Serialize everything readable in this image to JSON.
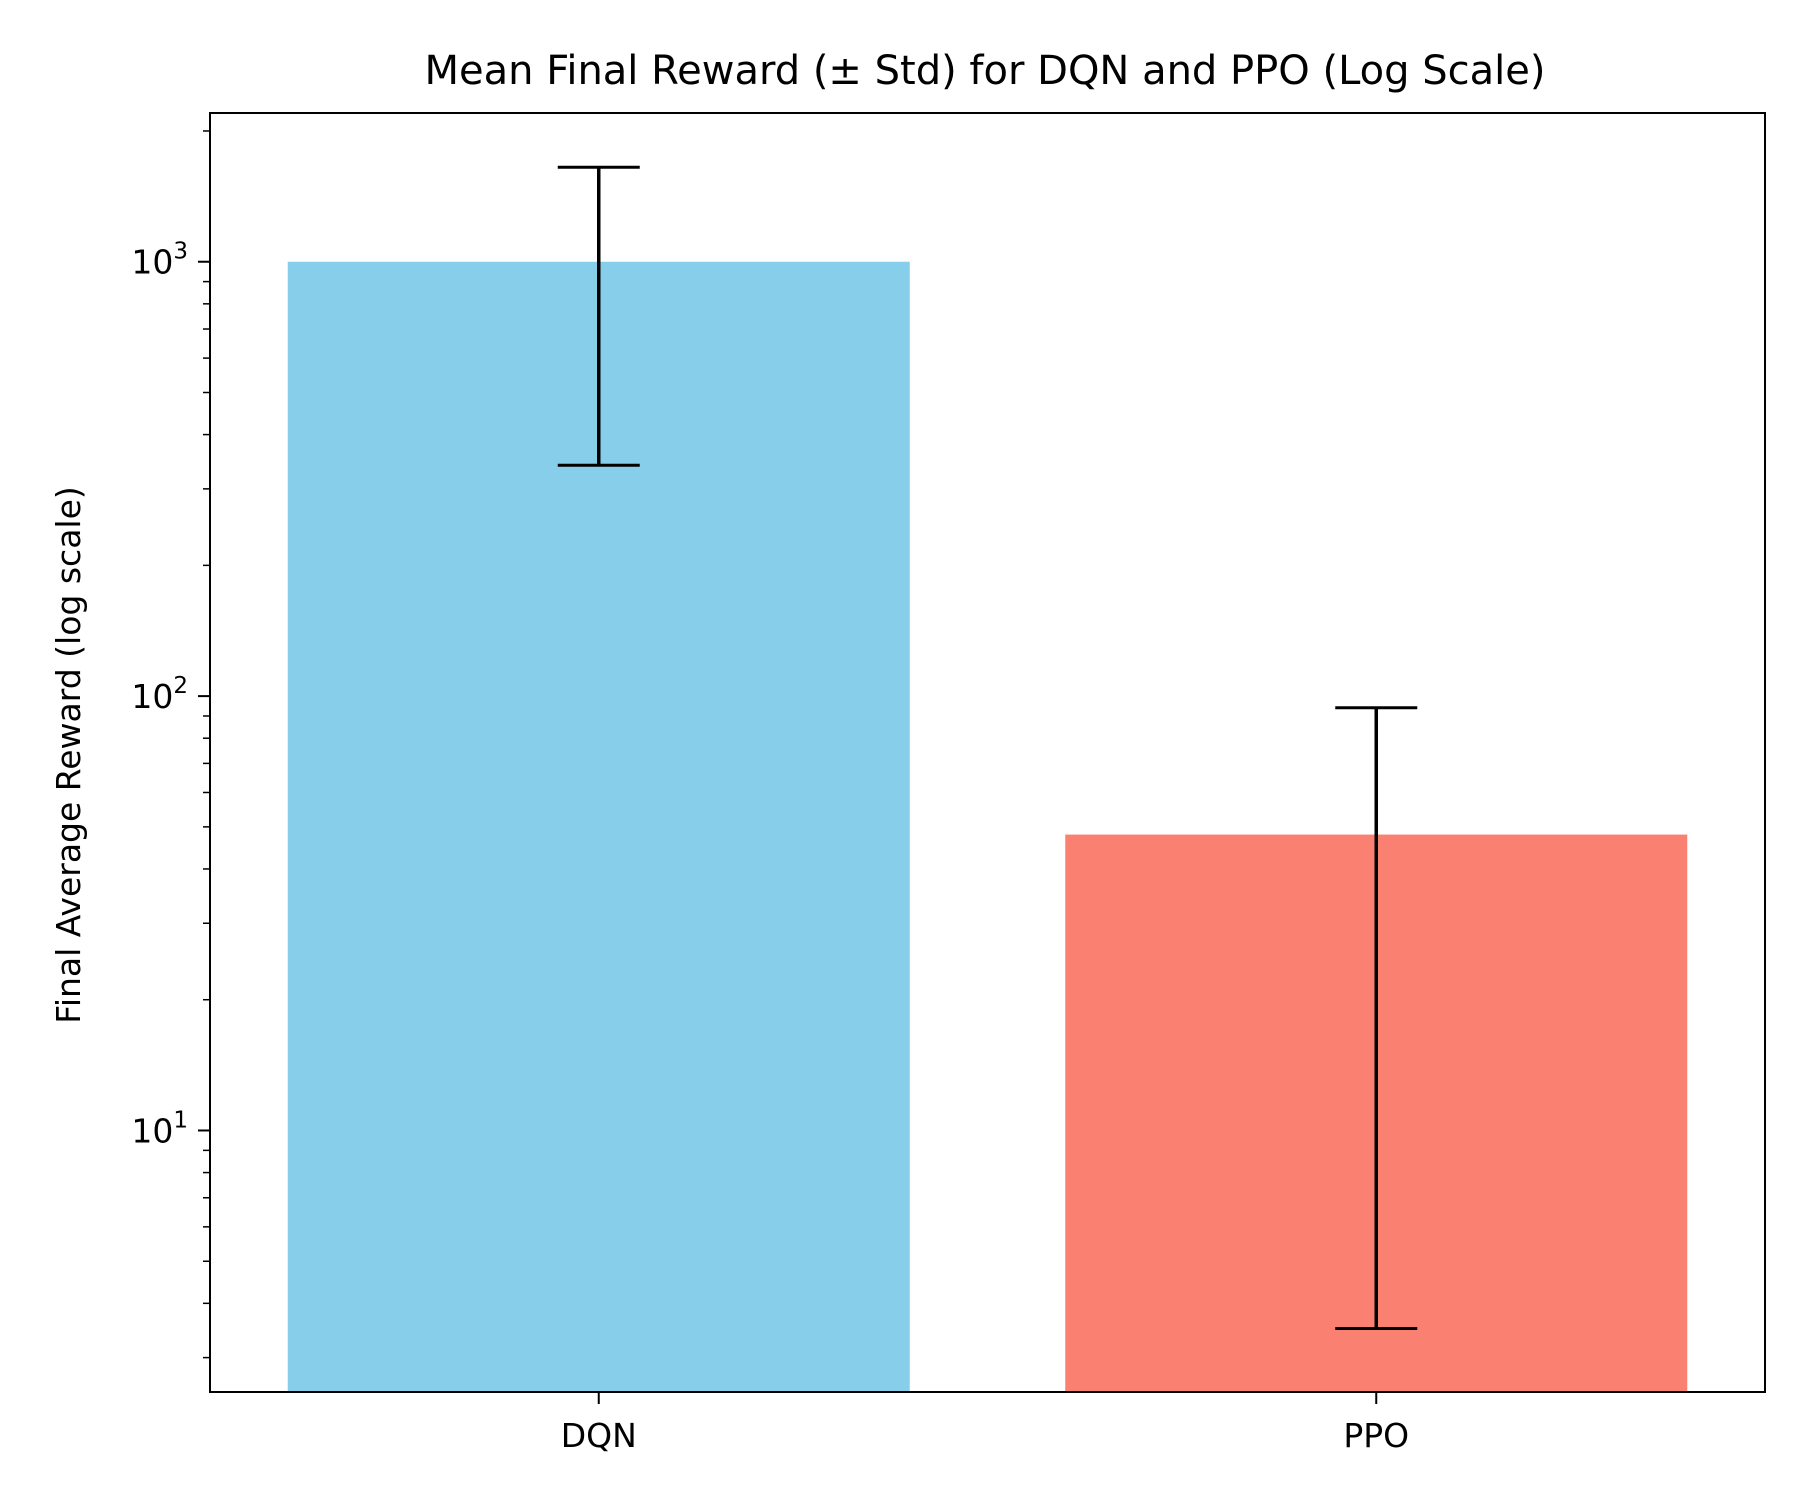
{
  "chart_data": {
    "type": "bar",
    "title": "Mean Final Reward (± Std) for DQN and PPO (Log Scale)",
    "xlabel": "",
    "ylabel": "Final Average Reward (log scale)",
    "categories": [
      "DQN",
      "PPO"
    ],
    "values": [
      1000,
      48
    ],
    "error_low": [
      340,
      3.5
    ],
    "error_high": [
      1650,
      94
    ],
    "colors": [
      "#87CEEB",
      "#FA8072"
    ],
    "yscale": "log",
    "ylim": [
      2.5,
      2200
    ],
    "y_major_ticks": [
      {
        "value": 10,
        "base": "10",
        "exp": "1"
      },
      {
        "value": 100,
        "base": "10",
        "exp": "2"
      },
      {
        "value": 1000,
        "base": "10",
        "exp": "3"
      }
    ],
    "grid": false,
    "legend": false
  }
}
